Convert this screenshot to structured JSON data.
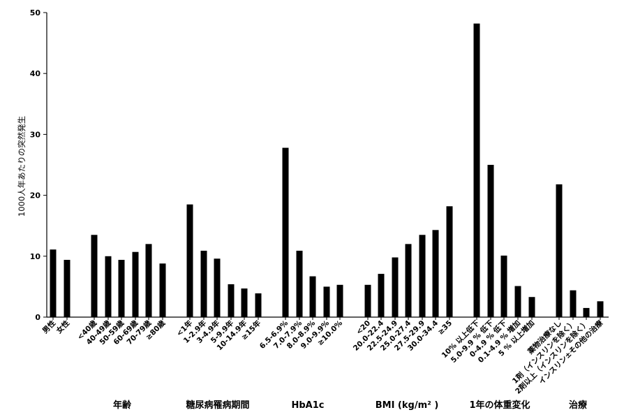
{
  "chart_data": {
    "type": "bar",
    "ylabel": "1000人年あたりの突然発生",
    "ylim": [
      0,
      50
    ],
    "yticks": [
      0,
      10,
      20,
      30,
      40,
      50
    ],
    "grid": false,
    "legend": "none",
    "bar_color": "#000000",
    "groups": [
      {
        "name": "",
        "categories": [
          "男性",
          "女性"
        ],
        "values": [
          11.1,
          9.4
        ]
      },
      {
        "name": "年齢",
        "categories": [
          "<40歳",
          "40-49歳",
          "50-59歳",
          "60-69歳",
          "70-79歳",
          "≥80歳"
        ],
        "values": [
          13.5,
          10.0,
          9.4,
          10.7,
          12.0,
          8.8
        ]
      },
      {
        "name": "糖尿病罹病期間",
        "categories": [
          "<1年",
          "1-2.9年",
          "3-4.9年",
          "5-9.9年",
          "10-14.9年",
          "≥15年"
        ],
        "values": [
          18.5,
          10.9,
          9.6,
          5.4,
          4.7,
          3.9
        ]
      },
      {
        "name": "HbA1c",
        "categories": [
          "6.5-6.9%",
          "7.0-7.9%",
          "8.0-8.9%",
          "9.0-9.9%",
          "≥10.0%"
        ],
        "values": [
          27.8,
          10.9,
          6.7,
          5.0,
          5.3
        ]
      },
      {
        "name": "BMI (kg/m² )",
        "categories": [
          "<20",
          "20.0-22.4",
          "22.5-24.9",
          "25.0-27.4",
          "27.5-29.9",
          "30.0-34.4",
          "≥35"
        ],
        "values": [
          5.3,
          7.1,
          9.8,
          12.0,
          13.5,
          14.3,
          18.2
        ]
      },
      {
        "name": "1年の体重変化",
        "categories": [
          "10% 以上低下",
          "5.0-9.9 % 低下",
          "0-4.9 % 低下",
          "0.1-4.9 % 増加",
          "5 % 以上増加"
        ],
        "values": [
          48.2,
          25.0,
          10.1,
          5.1,
          3.3
        ]
      },
      {
        "name": "治療",
        "categories": [
          "薬物治療なし",
          "1剤（インスリンを除く）",
          "2剤以上（インスリンを除く）",
          "インスリン±その他の治療"
        ],
        "values": [
          21.8,
          4.4,
          1.5,
          2.6
        ]
      }
    ]
  }
}
